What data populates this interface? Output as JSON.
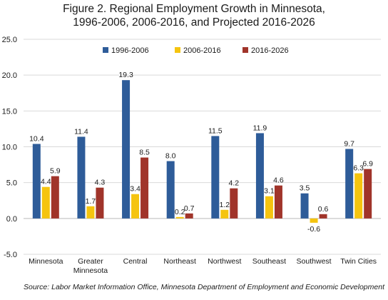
{
  "chart_data": {
    "type": "bar",
    "title_line1": "Figure 2. Regional Employment Growth in Minnesota,",
    "title_line2": "1996-2006, 2006-2016, and Projected 2016-2026",
    "categories": [
      "Minnesota",
      "Greater Minnesota",
      "Central",
      "Northeast",
      "Northwest",
      "Southeast",
      "Southwest",
      "Twin Cities"
    ],
    "category_lines": [
      [
        "Minnesota"
      ],
      [
        "Greater",
        "Minnesota"
      ],
      [
        "Central"
      ],
      [
        "Northeast"
      ],
      [
        "Northwest"
      ],
      [
        "Southeast"
      ],
      [
        "Southwest"
      ],
      [
        "Twin Cities"
      ]
    ],
    "series": [
      {
        "name": "1996-2006",
        "color": "#2e5c99",
        "values": [
          10.4,
          11.4,
          19.3,
          8.0,
          11.5,
          11.9,
          3.5,
          9.7
        ],
        "labels": [
          "10.4",
          "11.4",
          "19.3",
          "8.0",
          "11.5",
          "11.9",
          "3.5",
          "9.7"
        ]
      },
      {
        "name": "2006-2016",
        "color": "#f5c40f",
        "values": [
          4.4,
          1.7,
          3.4,
          0.2,
          1.2,
          3.1,
          -0.6,
          6.3
        ],
        "labels": [
          "4.4",
          "1.7",
          "3.4",
          "0.2",
          "1.2",
          "3.1",
          "-0.6",
          "6.3"
        ]
      },
      {
        "name": "2016-2026",
        "color": "#a0342a",
        "values": [
          5.9,
          4.3,
          8.5,
          0.7,
          4.2,
          4.6,
          0.6,
          6.9
        ],
        "labels": [
          "5.9",
          "4.3",
          "8.5",
          "0.7",
          "4.2",
          "4.6",
          "0.6",
          "6.9"
        ]
      }
    ],
    "ylim": [
      -5,
      25
    ],
    "yticks": [
      -5,
      0,
      5,
      10,
      15,
      20,
      25
    ],
    "ytick_labels": [
      "-5.0",
      "0.0",
      "5.0",
      "10.0",
      "15.0",
      "20.0",
      "25.0"
    ],
    "grid": true,
    "legend_position": "top-center",
    "source": "Source: Labor Market Information Office, Minnesota Department of Employment and Economic Development"
  }
}
